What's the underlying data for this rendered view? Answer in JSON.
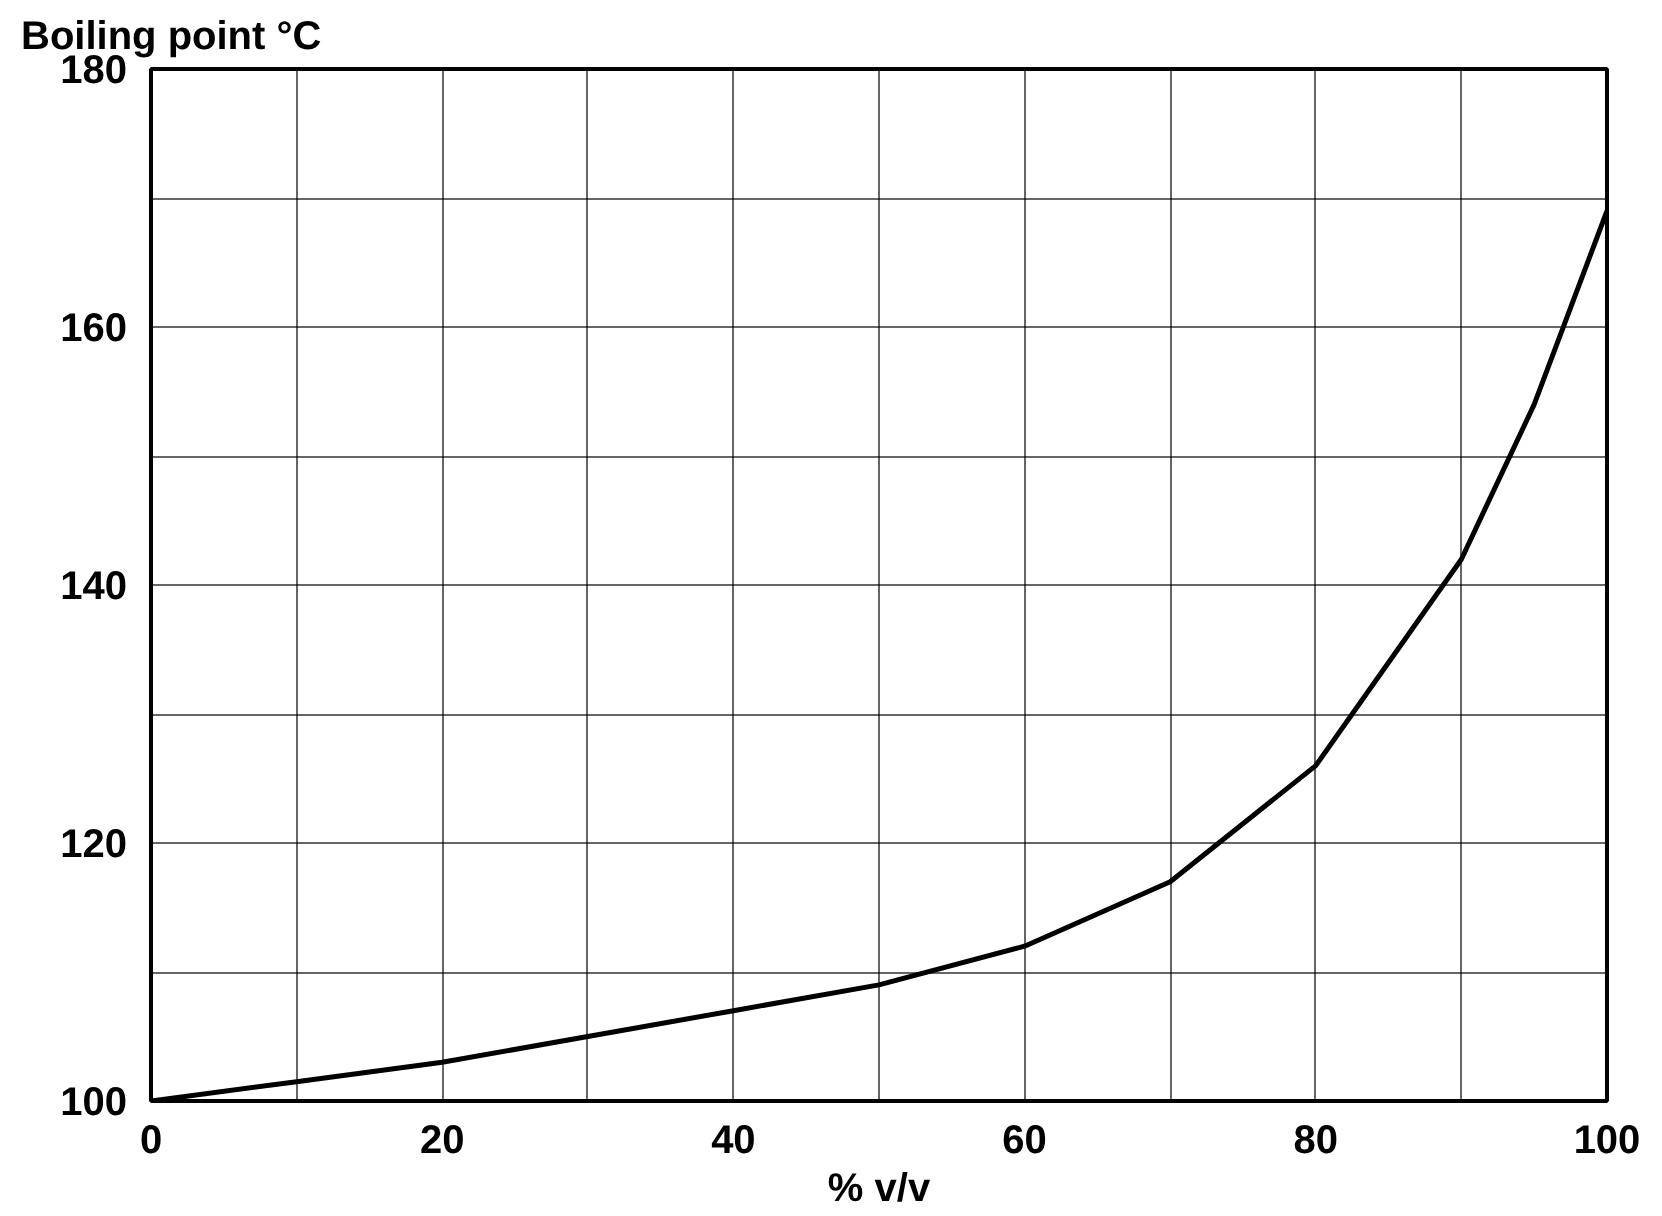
{
  "chart_data": {
    "type": "line",
    "ylabel": "Boiling point °C",
    "xlabel": "% v/v",
    "x": [
      0,
      10,
      20,
      30,
      40,
      50,
      60,
      70,
      80,
      90,
      95,
      100
    ],
    "series": [
      {
        "color": "#000000",
        "values": [
          100,
          101.5,
          103,
          105,
          107,
          109,
          112,
          117,
          126,
          142,
          154,
          169
        ]
      }
    ],
    "xlim": [
      0,
      100
    ],
    "ylim": [
      100,
      180
    ],
    "xticks": [
      0,
      {
        "value": 10,
        "label": null
      },
      20,
      {
        "value": 30,
        "label": null
      },
      40,
      {
        "value": 50,
        "label": null
      },
      60,
      {
        "value": 70,
        "label": null
      },
      80,
      {
        "value": 90,
        "label": null
      },
      100
    ],
    "yticks": [
      100,
      {
        "value": 110,
        "label": null
      },
      120,
      {
        "value": 130,
        "label": null
      },
      140,
      {
        "value": 150,
        "label": null
      },
      160,
      {
        "value": 170,
        "label": null
      },
      180
    ],
    "grid": true,
    "marker": "none",
    "line_style": "solid"
  }
}
